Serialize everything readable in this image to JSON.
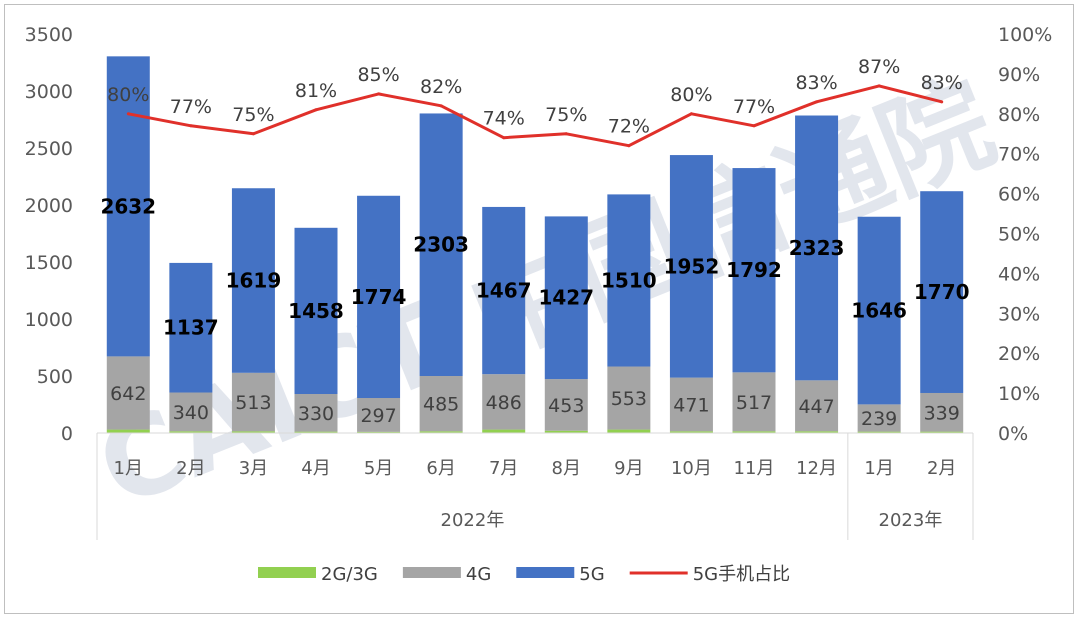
{
  "chart_data": {
    "type": "bar",
    "stacked": true,
    "categories": [
      "1月",
      "2月",
      "3月",
      "4月",
      "5月",
      "6月",
      "7月",
      "8月",
      "9月",
      "10月",
      "11月",
      "12月",
      "1月",
      "2月"
    ],
    "groups": [
      {
        "label": "2022年",
        "count": 12
      },
      {
        "label": "2023年",
        "count": 2
      }
    ],
    "series": [
      {
        "name": "2G/3G",
        "type": "bar",
        "color": "#92d050",
        "values": [
          30,
          15,
          15,
          12,
          10,
          15,
          30,
          20,
          30,
          15,
          15,
          15,
          12,
          12
        ]
      },
      {
        "name": "4G",
        "type": "bar",
        "color": "#a5a5a5",
        "values": [
          642,
          340,
          513,
          330,
          297,
          485,
          486,
          453,
          553,
          471,
          517,
          447,
          239,
          339
        ]
      },
      {
        "name": "5G",
        "type": "bar",
        "color": "#4472c4",
        "values": [
          2632,
          1137,
          1619,
          1458,
          1774,
          2303,
          1467,
          1427,
          1510,
          1952,
          1792,
          2323,
          1646,
          1770
        ]
      },
      {
        "name": "5G手机占比",
        "type": "line",
        "color": "#e0302a",
        "axis": "right",
        "values": [
          80,
          77,
          75,
          81,
          85,
          82,
          74,
          75,
          72,
          80,
          77,
          83,
          87,
          83
        ],
        "labels": [
          "80%",
          "77%",
          "75%",
          "81%",
          "85%",
          "82%",
          "74%",
          "75%",
          "72%",
          "80%",
          "77%",
          "83%",
          "87%",
          "83%"
        ]
      }
    ],
    "y_left": {
      "min": 0,
      "max": 3500,
      "ticks": [
        "0",
        "500",
        "1000",
        "1500",
        "2000",
        "2500",
        "3000",
        "3500"
      ]
    },
    "y_right": {
      "min": 0,
      "max": 100,
      "ticks": [
        "0%",
        "10%",
        "20%",
        "30%",
        "40%",
        "50%",
        "60%",
        "70%",
        "80%",
        "90%",
        "100%"
      ]
    },
    "grid": false,
    "legend": "bottom"
  }
}
